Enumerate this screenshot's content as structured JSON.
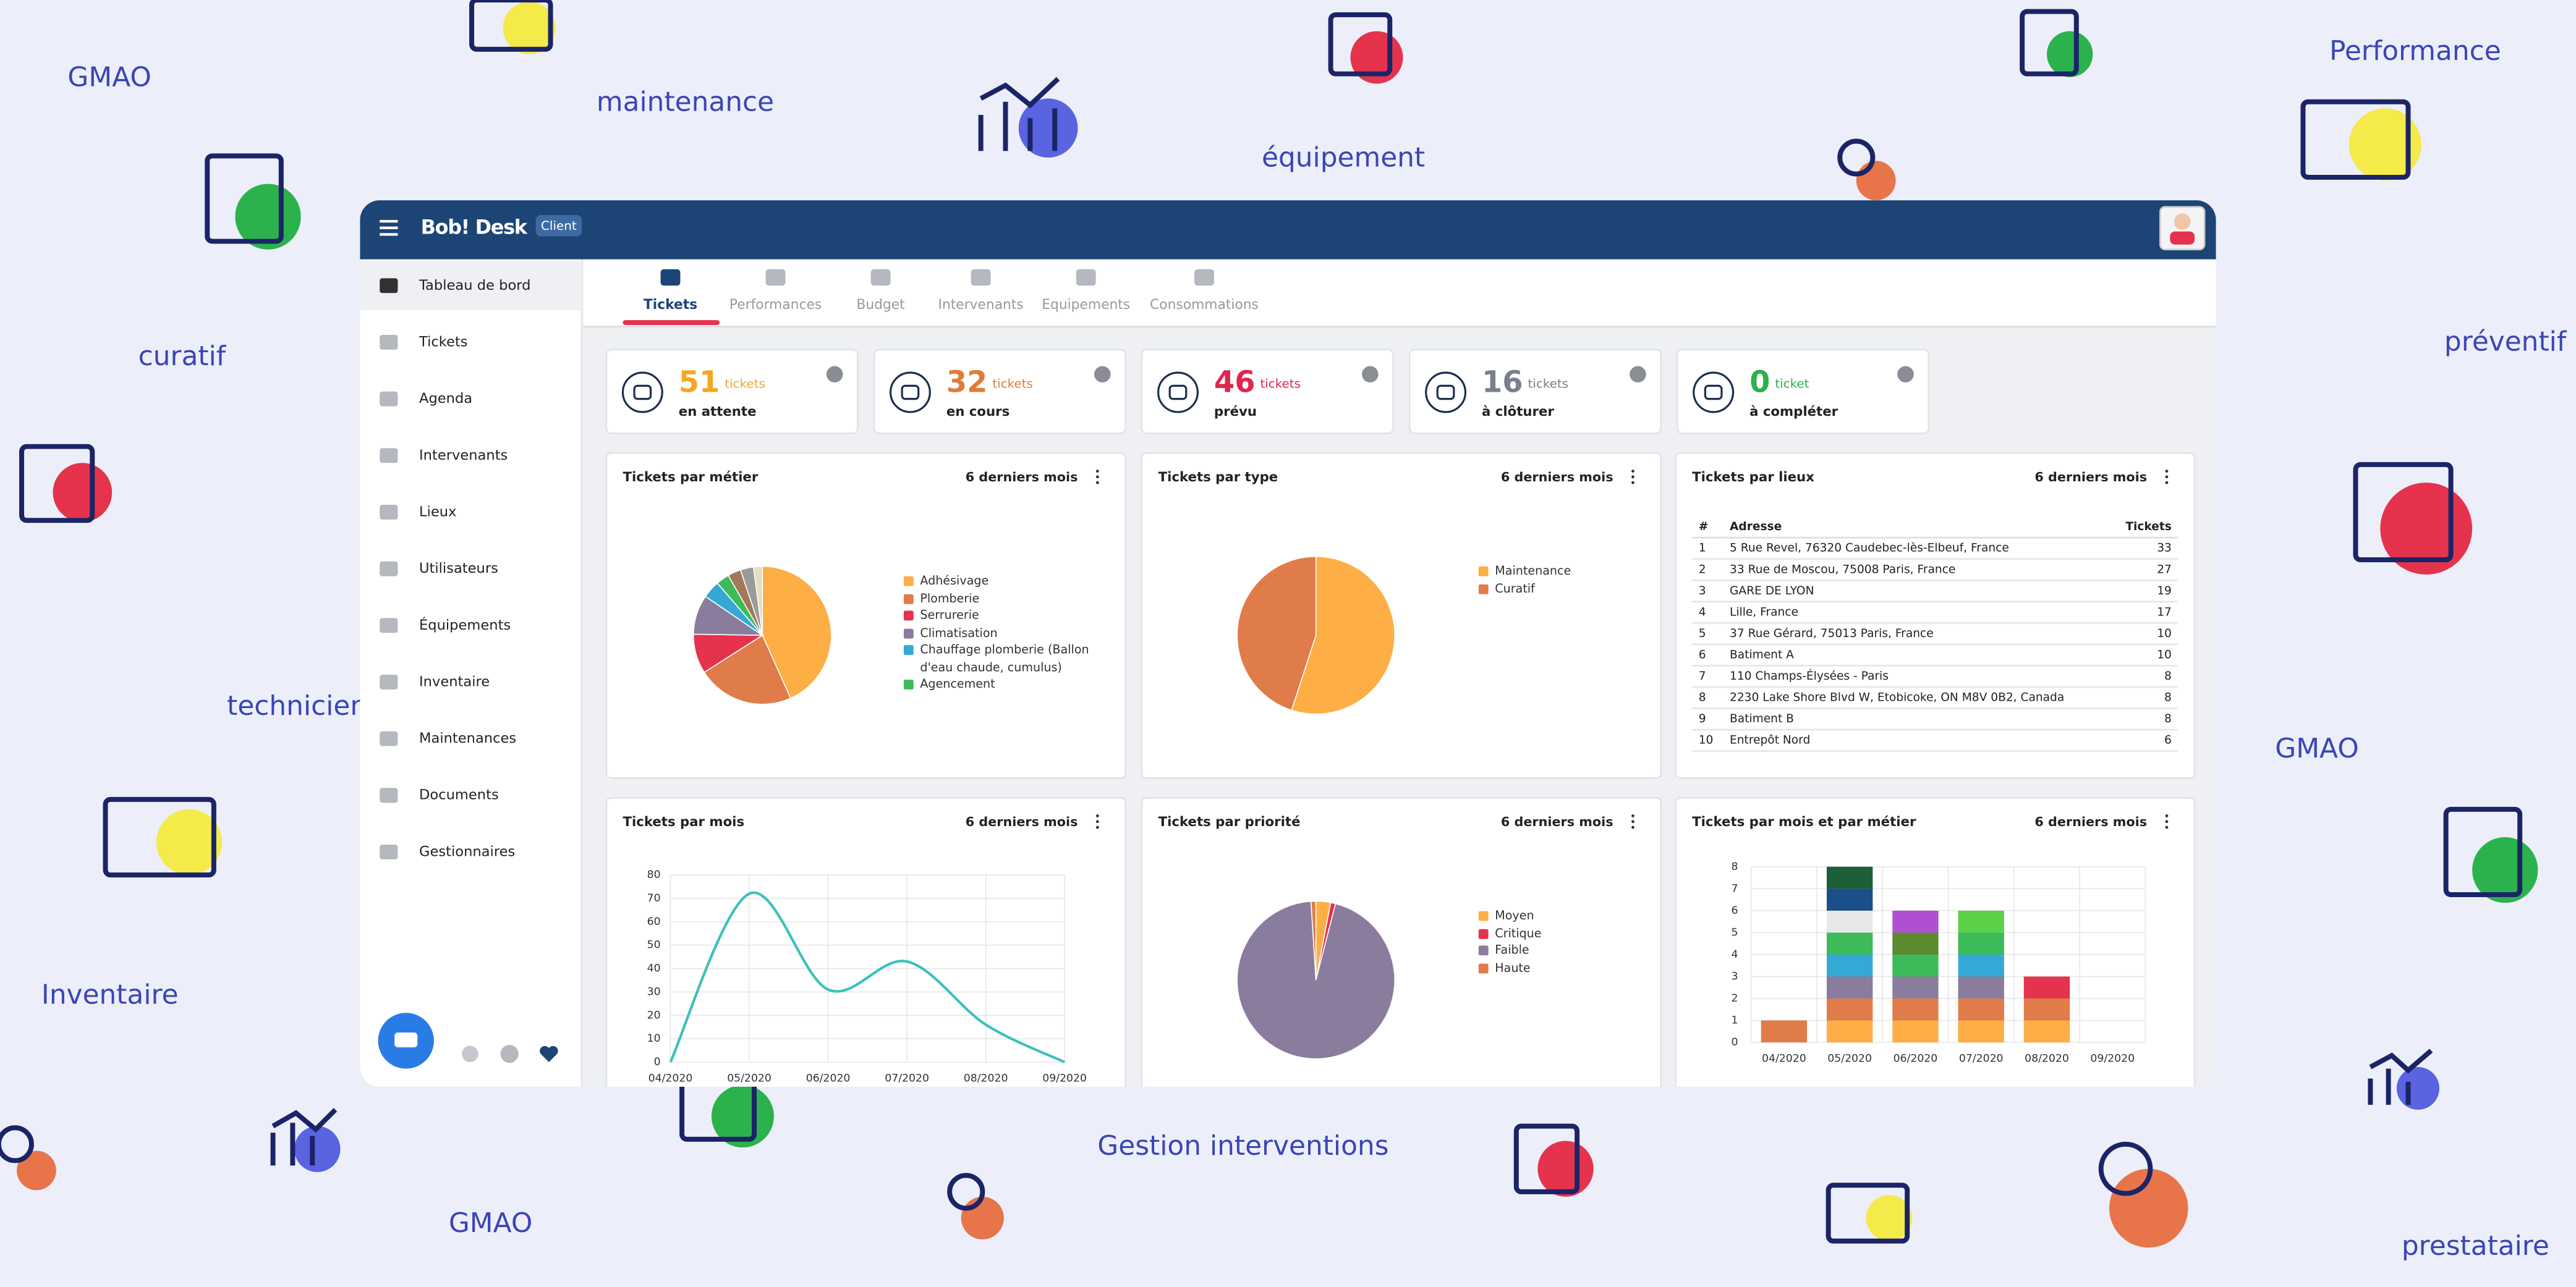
{
  "background_words": [
    "GMAO",
    "maintenance",
    "équipement",
    "Performance",
    "curatif",
    "préventif",
    "technicien",
    "GMAO",
    "Inventaire",
    "Gestion interventions",
    "GMAO",
    "prestataire"
  ],
  "header": {
    "brand": "Bob! Desk",
    "badge": "Client"
  },
  "sidebar": [
    "Tableau de bord",
    "Tickets",
    "Agenda",
    "Intervenants",
    "Lieux",
    "Utilisateurs",
    "Équipements",
    "Inventaire",
    "Maintenances",
    "Documents",
    "Gestionnaires"
  ],
  "tabs": [
    "Tickets",
    "Performances",
    "Budget",
    "Intervenants",
    "Equipements",
    "Consommations"
  ],
  "stats": [
    {
      "value": 51,
      "unit": "tickets",
      "label": "en attente",
      "color": "#f5a623"
    },
    {
      "value": 32,
      "unit": "tickets",
      "label": "en cours",
      "color": "#e07b39"
    },
    {
      "value": 46,
      "unit": "tickets",
      "label": "prévu",
      "color": "#e0284f"
    },
    {
      "value": 16,
      "unit": "tickets",
      "label": "à clôturer",
      "color": "#7a7f8c"
    },
    {
      "value": 0,
      "unit": "ticket",
      "label": "à compléter",
      "color": "#2bb24c"
    }
  ],
  "panels": [
    {
      "title": "Tickets par métier",
      "period": "6 derniers mois"
    },
    {
      "title": "Tickets par type",
      "period": "6 derniers mois"
    },
    {
      "title": "Tickets par lieux",
      "period": "6 derniers mois"
    },
    {
      "title": "Tickets par mois",
      "period": "6 derniers mois"
    },
    {
      "title": "Tickets par priorité",
      "period": "6 derniers mois"
    },
    {
      "title": "Tickets par mois et par métier",
      "period": "6 derniers mois"
    }
  ],
  "table": {
    "header": [
      "#",
      "Adresse",
      "Tickets"
    ],
    "rows": [
      [
        1,
        "5 Rue Revel, 76320 Caudebec-lès-Elbeuf, France",
        33
      ],
      [
        2,
        "33 Rue de Moscou, 75008 Paris, France",
        27
      ],
      [
        3,
        "GARE DE LYON",
        19
      ],
      [
        4,
        "Lille, France",
        17
      ],
      [
        5,
        "37 Rue Gérard, 75013 Paris, France",
        10
      ],
      [
        6,
        "Batiment A",
        10
      ],
      [
        7,
        "110 Champs-Élysées - Paris",
        8
      ],
      [
        8,
        "2230 Lake Shore Blvd W, Etobicoke, ON M8V 0B2, Canada",
        8
      ],
      [
        9,
        "Batiment B",
        8
      ],
      [
        10,
        "Entrepôt Nord",
        6
      ]
    ]
  },
  "chart_data": [
    {
      "type": "pie",
      "categories": [
        "Adhésivage",
        "Plomberie",
        "Serrurerie",
        "Climatisation",
        "Chauffage plomberie (Ballon d'eau chaude, cumulus)",
        "Agencement",
        null,
        null,
        null
      ],
      "values": [
        42,
        22,
        9,
        9,
        4,
        3,
        3,
        3,
        2
      ],
      "colors": [
        "#fdae45",
        "#e07b4a",
        "#e5334e",
        "#8a7b9c",
        "#36a9d6",
        "#3dba5a",
        "#a0785a",
        "#9a9a9a",
        "#e8dcc0"
      ]
    },
    {
      "type": "pie",
      "categories": [
        "Maintenance",
        "Curatif"
      ],
      "values": [
        55,
        45
      ],
      "colors": [
        "#fdae45",
        "#e07b4a"
      ]
    },
    {
      "type": "line",
      "categories": [
        "04/2020",
        "05/2020",
        "06/2020",
        "07/2020",
        "08/2020",
        "09/2020"
      ],
      "values": [
        0,
        72,
        31,
        43,
        16,
        0
      ],
      "color": "#3cc1b8",
      "ylim": [
        0,
        80
      ],
      "yticks": [
        0,
        10,
        20,
        30,
        40,
        50,
        60,
        70,
        80
      ],
      "grid": true
    },
    {
      "type": "pie",
      "categories": [
        "Moyen",
        "Critique",
        "Faible",
        "Haute"
      ],
      "values": [
        3,
        1,
        95,
        1
      ],
      "colors": [
        "#fdae45",
        "#e5334e",
        "#8a7b9c",
        "#e07b4a"
      ]
    },
    {
      "type": "stacked_bar",
      "categories": [
        "04/2020",
        "05/2020",
        "06/2020",
        "07/2020",
        "08/2020",
        "09/2020"
      ],
      "ylim": [
        0,
        8
      ],
      "yticks": [
        0,
        1,
        2,
        3,
        4,
        5,
        6,
        7,
        8
      ],
      "grid": true,
      "series": [
        {
          "color": "#fdae45",
          "values": [
            0,
            1,
            1,
            1,
            1,
            0
          ]
        },
        {
          "color": "#e07b4a",
          "values": [
            1,
            1,
            1,
            1,
            1,
            0
          ]
        },
        {
          "color": "#e5334e",
          "values": [
            0,
            0,
            0,
            0,
            1,
            0
          ]
        },
        {
          "color": "#8a7b9c",
          "values": [
            0,
            1,
            1,
            1,
            0,
            0
          ]
        },
        {
          "color": "#36a9d6",
          "values": [
            0,
            1,
            0,
            1,
            0,
            0
          ]
        },
        {
          "color": "#3dba5a",
          "values": [
            0,
            1,
            1,
            1,
            0,
            0
          ]
        },
        {
          "color": "#5bd04a",
          "values": [
            0,
            0,
            0,
            1,
            0,
            0
          ]
        },
        {
          "color": "#e8e8e8",
          "values": [
            0,
            1,
            0,
            0,
            0,
            0
          ]
        },
        {
          "color": "#5c8a2e",
          "values": [
            0,
            0,
            1,
            0,
            0,
            0
          ]
        },
        {
          "color": "#b04fd0",
          "values": [
            0,
            0,
            1,
            0,
            0,
            0
          ]
        },
        {
          "color": "#1d4f8a",
          "values": [
            0,
            1,
            0,
            0,
            0,
            0
          ]
        },
        {
          "color": "#1b5e3a",
          "values": [
            0,
            1,
            0,
            0,
            0,
            0
          ]
        }
      ]
    }
  ]
}
